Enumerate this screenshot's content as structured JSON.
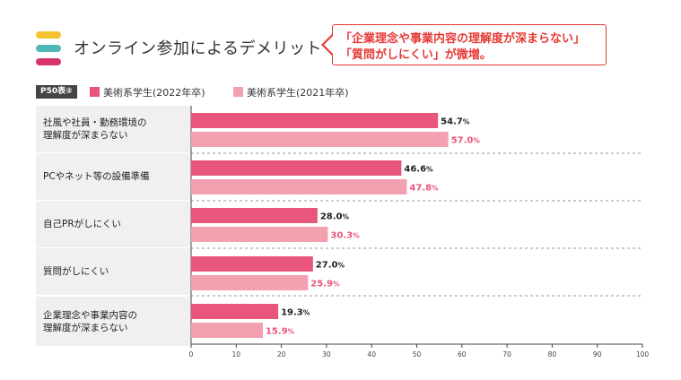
{
  "header": {
    "title": "オンライン参加によるデメリット",
    "callout_line1": "「企業理念や事業内容の理解度が深まらない」",
    "callout_line2": "「質問がしにくい」が微増。",
    "pill_colors": [
      "#f2c230",
      "#4fb8b6",
      "#d8336f"
    ]
  },
  "chart_data": {
    "type": "bar",
    "orientation": "horizontal",
    "tag": "P50表②",
    "categories": [
      [
        "社風や社員・勤務環境の",
        "理解度が深まらない"
      ],
      [
        "PCやネット等の設備準備"
      ],
      [
        "自己PRがしにくい"
      ],
      [
        "質問がしにくい"
      ],
      [
        "企業理念や事業内容の",
        "理解度が深まらない"
      ]
    ],
    "series": [
      {
        "name": "美術系学生(2022年卒)",
        "color": "#e8557d",
        "label_color": "#222222",
        "values": [
          54.7,
          46.6,
          28.0,
          27.0,
          19.3
        ]
      },
      {
        "name": "美術系学生(2021年卒)",
        "color": "#f3a0b1",
        "label_color": "#e8557d",
        "values": [
          57.0,
          47.8,
          30.3,
          25.9,
          15.9
        ]
      }
    ],
    "value_suffix": "%",
    "xlim": [
      0,
      100
    ],
    "xticks": [
      0,
      10,
      20,
      30,
      40,
      50,
      60,
      70,
      80,
      90,
      100
    ]
  }
}
